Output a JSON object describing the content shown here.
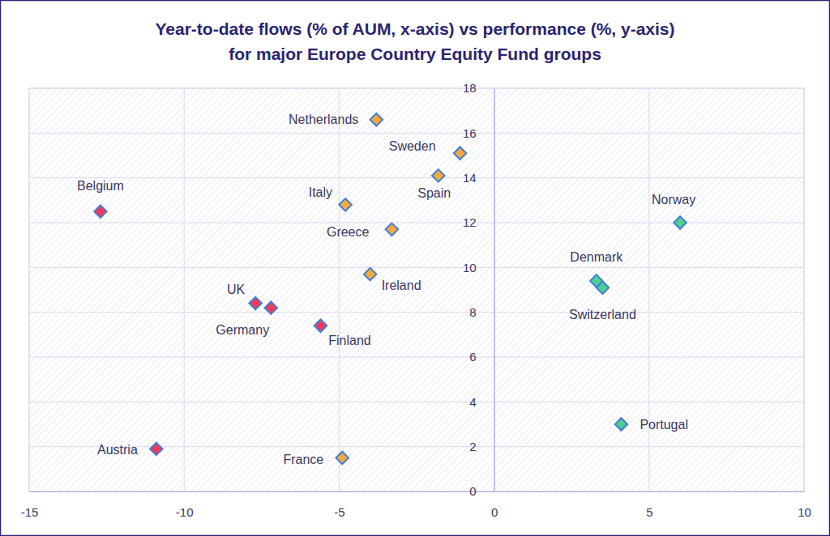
{
  "chart_data": {
    "type": "scatter",
    "title": [
      "Year-to-date flows (% of AUM, x-axis) vs performance (%, y-axis)",
      "for major Europe Country Equity Fund groups"
    ],
    "categories": [
      "Netherlands",
      "Sweden",
      "Spain",
      "Italy",
      "Greece",
      "Ireland",
      "Belgium",
      "UK",
      "Germany",
      "Finland",
      "Austria",
      "France",
      "Norway",
      "Denmark",
      "Switzerland",
      "Portugal"
    ],
    "x": [
      -3.8,
      -1.1,
      -1.8,
      -4.8,
      -3.3,
      -4.0,
      -12.7,
      -7.7,
      -7.2,
      -5.6,
      -10.9,
      -4.9,
      6.0,
      3.3,
      3.5,
      4.1
    ],
    "values": [
      16.6,
      15.1,
      14.1,
      12.8,
      11.7,
      9.7,
      12.5,
      8.4,
      8.2,
      7.4,
      1.9,
      1.5,
      12.0,
      9.4,
      9.1,
      3.0
    ],
    "colors": [
      "#f5a93b",
      "#f5a93b",
      "#f5a93b",
      "#f5a93b",
      "#f5a93b",
      "#f5a93b",
      "#f2385a",
      "#f2385a",
      "#f2385a",
      "#f2385a",
      "#f2385a",
      "#f5a93b",
      "#4fcf8d",
      "#4fcf8d",
      "#4fcf8d",
      "#4fcf8d"
    ],
    "marker": "diamond",
    "xlim": [
      -15,
      10
    ],
    "xticks": [
      -15,
      -10,
      -5,
      0,
      5,
      10
    ],
    "ylim": [
      0,
      18
    ],
    "yticks": [
      0,
      2,
      4,
      6,
      8,
      10,
      12,
      14,
      16,
      18
    ],
    "grid": true
  }
}
